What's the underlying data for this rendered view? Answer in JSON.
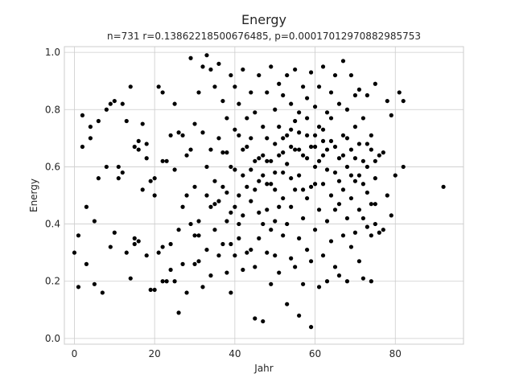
{
  "chart_data": {
    "type": "scatter",
    "title": "Energy",
    "subtitle": "n=731 r=0.13862218500676485, p=0.00017012970882985753",
    "xlabel": "Jahr",
    "ylabel": "Energy",
    "xlim": [
      -2.5,
      97
    ],
    "ylim": [
      -0.02,
      1.02
    ],
    "xticks": [
      0,
      20,
      40,
      60,
      80
    ],
    "yticks": [
      0.0,
      0.2,
      0.4,
      0.6,
      0.8,
      1.0
    ],
    "xtick_labels": [
      "0",
      "20",
      "40",
      "60",
      "80"
    ],
    "ytick_labels": [
      "0.0",
      "0.2",
      "0.4",
      "0.6",
      "0.8",
      "1.0"
    ],
    "grid": true,
    "marker_color": "#000000",
    "points": [
      [
        0,
        0.3
      ],
      [
        1,
        0.18
      ],
      [
        1,
        0.36
      ],
      [
        2,
        0.67
      ],
      [
        2,
        0.78
      ],
      [
        3,
        0.26
      ],
      [
        3,
        0.46
      ],
      [
        4,
        0.7
      ],
      [
        4,
        0.74
      ],
      [
        5,
        0.41
      ],
      [
        5,
        0.19
      ],
      [
        6,
        0.56
      ],
      [
        6,
        0.76
      ],
      [
        7,
        0.16
      ],
      [
        8,
        0.6
      ],
      [
        8,
        0.8
      ],
      [
        9,
        0.32
      ],
      [
        9,
        0.82
      ],
      [
        10,
        0.37
      ],
      [
        10,
        0.83
      ],
      [
        11,
        0.56
      ],
      [
        11,
        0.6
      ],
      [
        12,
        0.82
      ],
      [
        13,
        0.3
      ],
      [
        13,
        0.76
      ],
      [
        14,
        0.21
      ],
      [
        14,
        0.88
      ],
      [
        15,
        0.33
      ],
      [
        15,
        0.35
      ],
      [
        15,
        0.67
      ],
      [
        16,
        0.34
      ],
      [
        16,
        0.66
      ],
      [
        16,
        0.69
      ],
      [
        17,
        0.52
      ],
      [
        17,
        0.75
      ],
      [
        18,
        0.63
      ],
      [
        18,
        0.29
      ],
      [
        19,
        0.55
      ],
      [
        19,
        0.17
      ],
      [
        20,
        0.17
      ],
      [
        20,
        0.56
      ],
      [
        21,
        0.3
      ],
      [
        21,
        0.88
      ],
      [
        22,
        0.62
      ],
      [
        22,
        0.2
      ],
      [
        22,
        0.86
      ],
      [
        23,
        0.2
      ],
      [
        23,
        0.62
      ],
      [
        24,
        0.33
      ],
      [
        24,
        0.71
      ],
      [
        25,
        0.2
      ],
      [
        25,
        0.59
      ],
      [
        25,
        0.82
      ],
      [
        26,
        0.72
      ],
      [
        26,
        0.09
      ],
      [
        27,
        0.46
      ],
      [
        27,
        0.71
      ],
      [
        28,
        0.16
      ],
      [
        28,
        0.5
      ],
      [
        29,
        0.4
      ],
      [
        29,
        0.66
      ],
      [
        29,
        0.98
      ],
      [
        30,
        0.26
      ],
      [
        30,
        0.53
      ],
      [
        30,
        0.75
      ],
      [
        31,
        0.36
      ],
      [
        31,
        0.41
      ],
      [
        31,
        0.86
      ],
      [
        32,
        0.18
      ],
      [
        32,
        0.72
      ],
      [
        32,
        0.95
      ],
      [
        33,
        0.31
      ],
      [
        33,
        0.6
      ],
      [
        33,
        0.99
      ],
      [
        34,
        0.22
      ],
      [
        34,
        0.46
      ],
      [
        34,
        0.94
      ],
      [
        35,
        0.47
      ],
      [
        35,
        0.55
      ],
      [
        35,
        0.88
      ],
      [
        36,
        0.29
      ],
      [
        36,
        0.48
      ],
      [
        36,
        0.7
      ],
      [
        36,
        0.96
      ],
      [
        37,
        0.33
      ],
      [
        37,
        0.65
      ],
      [
        37,
        0.83
      ],
      [
        38,
        0.23
      ],
      [
        38,
        0.41
      ],
      [
        38,
        0.51
      ],
      [
        38,
        0.77
      ],
      [
        39,
        0.16
      ],
      [
        39,
        0.33
      ],
      [
        39,
        0.6
      ],
      [
        39,
        0.92
      ],
      [
        40,
        0.29
      ],
      [
        40,
        0.46
      ],
      [
        40,
        0.59
      ],
      [
        40,
        0.88
      ],
      [
        41,
        0.35
      ],
      [
        41,
        0.5
      ],
      [
        41,
        0.71
      ],
      [
        41,
        0.82
      ],
      [
        42,
        0.24
      ],
      [
        42,
        0.43
      ],
      [
        42,
        0.57
      ],
      [
        42,
        0.94
      ],
      [
        43,
        0.3
      ],
      [
        43,
        0.53
      ],
      [
        43,
        0.67
      ],
      [
        44,
        0.31
      ],
      [
        44,
        0.48
      ],
      [
        44,
        0.7
      ],
      [
        44,
        0.86
      ],
      [
        45,
        0.07
      ],
      [
        45,
        0.25
      ],
      [
        45,
        0.52
      ],
      [
        45,
        0.79
      ],
      [
        46,
        0.35
      ],
      [
        46,
        0.55
      ],
      [
        46,
        0.63
      ],
      [
        46,
        0.92
      ],
      [
        47,
        0.06
      ],
      [
        47,
        0.4
      ],
      [
        47,
        0.57
      ],
      [
        47,
        0.74
      ],
      [
        48,
        0.3
      ],
      [
        48,
        0.45
      ],
      [
        48,
        0.62
      ],
      [
        48,
        0.86
      ],
      [
        49,
        0.19
      ],
      [
        49,
        0.38
      ],
      [
        49,
        0.54
      ],
      [
        49,
        0.95
      ],
      [
        50,
        0.29
      ],
      [
        50,
        0.52
      ],
      [
        50,
        0.68
      ],
      [
        50,
        0.8
      ],
      [
        51,
        0.23
      ],
      [
        51,
        0.46
      ],
      [
        51,
        0.64
      ],
      [
        51,
        0.89
      ],
      [
        52,
        0.36
      ],
      [
        52,
        0.58
      ],
      [
        52,
        0.7
      ],
      [
        52,
        0.85
      ],
      [
        53,
        0.12
      ],
      [
        53,
        0.4
      ],
      [
        53,
        0.61
      ],
      [
        53,
        0.92
      ],
      [
        54,
        0.28
      ],
      [
        54,
        0.46
      ],
      [
        54,
        0.73
      ],
      [
        54,
        0.82
      ],
      [
        55,
        0.25
      ],
      [
        55,
        0.52
      ],
      [
        55,
        0.66
      ],
      [
        55,
        0.94
      ],
      [
        56,
        0.08
      ],
      [
        56,
        0.35
      ],
      [
        56,
        0.57
      ],
      [
        56,
        0.79
      ],
      [
        57,
        0.19
      ],
      [
        57,
        0.42
      ],
      [
        57,
        0.64
      ],
      [
        57,
        0.88
      ],
      [
        58,
        0.31
      ],
      [
        58,
        0.49
      ],
      [
        58,
        0.71
      ],
      [
        58,
        0.84
      ],
      [
        59,
        0.04
      ],
      [
        59,
        0.27
      ],
      [
        59,
        0.53
      ],
      [
        59,
        0.93
      ],
      [
        60,
        0.38
      ],
      [
        60,
        0.6
      ],
      [
        60,
        0.67
      ],
      [
        60,
        0.81
      ],
      [
        61,
        0.18
      ],
      [
        61,
        0.45
      ],
      [
        61,
        0.62
      ],
      [
        61,
        0.88
      ],
      [
        62,
        0.29
      ],
      [
        62,
        0.54
      ],
      [
        62,
        0.73
      ],
      [
        62,
        0.95
      ],
      [
        63,
        0.2
      ],
      [
        63,
        0.41
      ],
      [
        63,
        0.66
      ],
      [
        63,
        0.79
      ],
      [
        64,
        0.34
      ],
      [
        64,
        0.5
      ],
      [
        64,
        0.69
      ],
      [
        64,
        0.86
      ],
      [
        65,
        0.25
      ],
      [
        65,
        0.45
      ],
      [
        65,
        0.58
      ],
      [
        65,
        0.92
      ],
      [
        66,
        0.22
      ],
      [
        66,
        0.47
      ],
      [
        66,
        0.63
      ],
      [
        66,
        0.82
      ],
      [
        67,
        0.36
      ],
      [
        67,
        0.52
      ],
      [
        67,
        0.71
      ],
      [
        67,
        0.97
      ],
      [
        68,
        0.2
      ],
      [
        68,
        0.42
      ],
      [
        68,
        0.6
      ],
      [
        68,
        0.8
      ],
      [
        69,
        0.32
      ],
      [
        69,
        0.49
      ],
      [
        69,
        0.66
      ],
      [
        69,
        0.92
      ],
      [
        70,
        0.37
      ],
      [
        70,
        0.55
      ],
      [
        70,
        0.74
      ],
      [
        70,
        0.85
      ],
      [
        71,
        0.27
      ],
      [
        71,
        0.45
      ],
      [
        71,
        0.57
      ],
      [
        71,
        0.87
      ],
      [
        72,
        0.21
      ],
      [
        72,
        0.42
      ],
      [
        72,
        0.62
      ],
      [
        72,
        0.77
      ],
      [
        73,
        0.39
      ],
      [
        73,
        0.51
      ],
      [
        73,
        0.68
      ],
      [
        73,
        0.85
      ],
      [
        74,
        0.2
      ],
      [
        74,
        0.36
      ],
      [
        74,
        0.47
      ],
      [
        74,
        0.71
      ],
      [
        75,
        0.4
      ],
      [
        75,
        0.56
      ],
      [
        75,
        0.62
      ],
      [
        75,
        0.89
      ],
      [
        76,
        0.37
      ],
      [
        76,
        0.64
      ],
      [
        77,
        0.38
      ],
      [
        77,
        0.65
      ],
      [
        78,
        0.5
      ],
      [
        78,
        0.83
      ],
      [
        79,
        0.43
      ],
      [
        79,
        0.78
      ],
      [
        80,
        0.57
      ],
      [
        81,
        0.86
      ],
      [
        82,
        0.6
      ],
      [
        82,
        0.83
      ],
      [
        92,
        0.53
      ],
      [
        12,
        0.58
      ],
      [
        18,
        0.68
      ],
      [
        20,
        0.5
      ],
      [
        22,
        0.32
      ],
      [
        24,
        0.24
      ],
      [
        26,
        0.38
      ],
      [
        27,
        0.26
      ],
      [
        28,
        0.64
      ],
      [
        30,
        0.36
      ],
      [
        31,
        0.27
      ],
      [
        33,
        0.5
      ],
      [
        34,
        0.66
      ],
      [
        35,
        0.38
      ],
      [
        37,
        0.53
      ],
      [
        38,
        0.65
      ],
      [
        39,
        0.44
      ],
      [
        40,
        0.73
      ],
      [
        41,
        0.4
      ],
      [
        42,
        0.66
      ],
      [
        43,
        0.77
      ],
      [
        44,
        0.59
      ],
      [
        45,
        0.62
      ],
      [
        46,
        0.44
      ],
      [
        47,
        0.64
      ],
      [
        48,
        0.7
      ],
      [
        49,
        0.62
      ],
      [
        50,
        0.41
      ],
      [
        51,
        0.74
      ],
      [
        52,
        0.49
      ],
      [
        53,
        0.71
      ],
      [
        54,
        0.56
      ],
      [
        55,
        0.76
      ],
      [
        56,
        0.66
      ],
      [
        57,
        0.52
      ],
      [
        58,
        0.63
      ],
      [
        59,
        0.67
      ],
      [
        60,
        0.54
      ],
      [
        61,
        0.74
      ],
      [
        62,
        0.64
      ],
      [
        63,
        0.59
      ],
      [
        64,
        0.77
      ],
      [
        65,
        0.67
      ],
      [
        66,
        0.55
      ],
      [
        67,
        0.64
      ],
      [
        68,
        0.7
      ],
      [
        69,
        0.57
      ],
      [
        70,
        0.63
      ],
      [
        71,
        0.68
      ],
      [
        72,
        0.54
      ],
      [
        73,
        0.6
      ],
      [
        74,
        0.66
      ],
      [
        75,
        0.47
      ],
      [
        56,
        0.72
      ],
      [
        58,
        0.77
      ],
      [
        60,
        0.71
      ],
      [
        62,
        0.69
      ],
      [
        54,
        0.67
      ],
      [
        52,
        0.65
      ],
      [
        50,
        0.58
      ],
      [
        48,
        0.54
      ]
    ]
  }
}
